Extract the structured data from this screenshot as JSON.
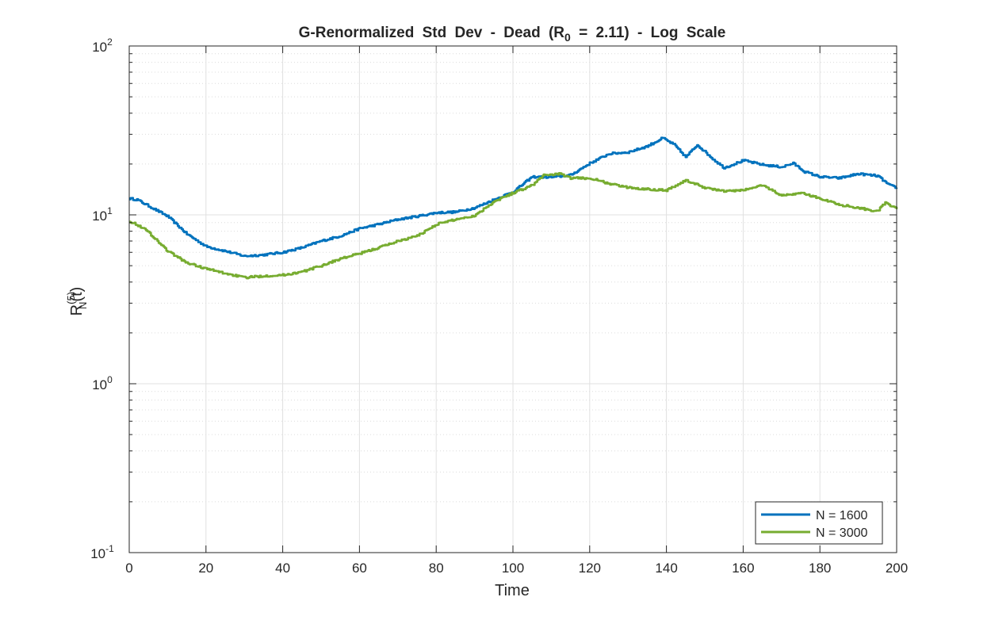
{
  "chart_data": {
    "type": "line",
    "title": {
      "main": "G-Renormalized Std Dev - Dead (R",
      "sub": "0",
      "rest": " = 2.11) - Log Scale"
    },
    "xlabel": "Time",
    "ylabel": {
      "base": "R",
      "superscript": "(5)",
      "subscript": "N",
      "suffix": "(t)"
    },
    "xlim": [
      0,
      200
    ],
    "ylim": [
      0.1,
      100
    ],
    "yscale": "log",
    "grid": true,
    "minor_grid": true,
    "x_ticks": [
      0,
      20,
      40,
      60,
      80,
      100,
      120,
      140,
      160,
      180,
      200
    ],
    "x_tick_labels": [
      "0",
      "20",
      "40",
      "60",
      "80",
      "100",
      "120",
      "140",
      "160",
      "180",
      "200"
    ],
    "y_ticks": [
      {
        "value": 0.1,
        "base": "10",
        "exp": "-1"
      },
      {
        "value": 1,
        "base": "10",
        "exp": "0"
      },
      {
        "value": 10,
        "base": "10",
        "exp": "1"
      },
      {
        "value": 100,
        "base": "10",
        "exp": "2"
      }
    ],
    "legend": {
      "position": "bottom-right"
    },
    "series": [
      {
        "name": "N = 1600",
        "color": "#0072BD",
        "x": [
          0,
          2,
          5,
          10,
          15,
          20,
          25,
          30,
          35,
          40,
          45,
          50,
          55,
          60,
          65,
          70,
          75,
          80,
          85,
          90,
          95,
          100,
          105,
          110,
          115,
          120,
          125,
          130,
          135,
          139,
          142,
          145,
          148,
          152,
          155,
          160,
          165,
          170,
          173,
          176,
          180,
          185,
          190,
          195,
          198,
          200
        ],
        "y": [
          12.5,
          12.3,
          11.3,
          9.8,
          7.7,
          6.5,
          6.1,
          5.7,
          5.8,
          6.0,
          6.4,
          7.0,
          7.5,
          8.3,
          8.8,
          9.4,
          9.8,
          10.3,
          10.4,
          11.0,
          12.3,
          13.7,
          16.8,
          16.7,
          17.2,
          20.2,
          23.0,
          23.5,
          25.5,
          28.5,
          26.0,
          22.0,
          26.0,
          21.5,
          19.0,
          21.0,
          19.8,
          19.2,
          20.2,
          18.0,
          16.8,
          16.5,
          17.5,
          17.0,
          15.0,
          14.5
        ]
      },
      {
        "name": "N = 3000",
        "color": "#77AC30",
        "x": [
          0,
          3,
          5,
          10,
          15,
          20,
          25,
          30,
          35,
          40,
          45,
          50,
          55,
          60,
          65,
          70,
          75,
          80,
          85,
          90,
          95,
          100,
          105,
          108,
          112,
          115,
          120,
          125,
          130,
          135,
          140,
          145,
          150,
          155,
          160,
          165,
          170,
          175,
          180,
          185,
          190,
          195,
          197,
          200
        ],
        "y": [
          9.2,
          8.5,
          7.9,
          6.1,
          5.2,
          4.8,
          4.5,
          4.25,
          4.35,
          4.4,
          4.6,
          5.0,
          5.5,
          5.9,
          6.4,
          7.0,
          7.5,
          8.8,
          9.4,
          9.9,
          12.0,
          13.5,
          15.0,
          17.2,
          17.5,
          16.5,
          16.5,
          15.3,
          14.5,
          14.2,
          14.0,
          16.0,
          14.5,
          13.8,
          14.0,
          15.0,
          13.0,
          13.5,
          12.5,
          11.5,
          11.0,
          10.5,
          11.8,
          10.8
        ]
      }
    ]
  }
}
